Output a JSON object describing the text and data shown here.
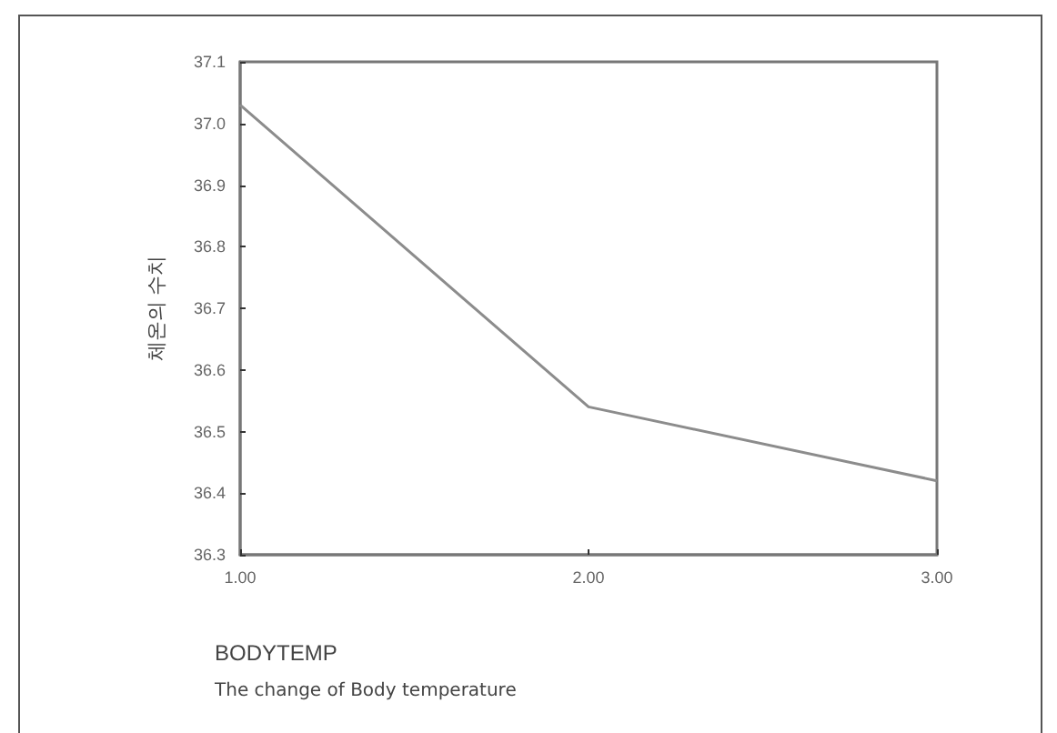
{
  "chart_data": {
    "type": "line",
    "xlabel": "BODYTEMP",
    "ylabel": "체온의 수치",
    "annotations": [
      "The change of Body temperature"
    ],
    "x": [
      1,
      2,
      3
    ],
    "series": [
      {
        "color": "#8c8c8c",
        "values": [
          37.03,
          36.54,
          36.42
        ]
      }
    ],
    "xlim": [
      1,
      3
    ],
    "xticks": [
      {
        "value": 1,
        "label": "1.00"
      },
      {
        "value": 2,
        "label": "2.00"
      },
      {
        "value": 3,
        "label": "3.00"
      }
    ],
    "ylim": [
      36.3,
      37.1
    ],
    "yticks": [
      {
        "value": 36.3,
        "label": "36.3"
      },
      {
        "value": 36.4,
        "label": "36.4"
      },
      {
        "value": 36.5,
        "label": "36.5"
      },
      {
        "value": 36.6,
        "label": "36.6"
      },
      {
        "value": 36.7,
        "label": "36.7"
      },
      {
        "value": 36.8,
        "label": "36.8"
      },
      {
        "value": 36.9,
        "label": "36.9"
      },
      {
        "value": 37.0,
        "label": "37.0"
      },
      {
        "value": 37.1,
        "label": "37.1"
      }
    ],
    "grid": false,
    "marker": "none",
    "line_style": "solid"
  }
}
